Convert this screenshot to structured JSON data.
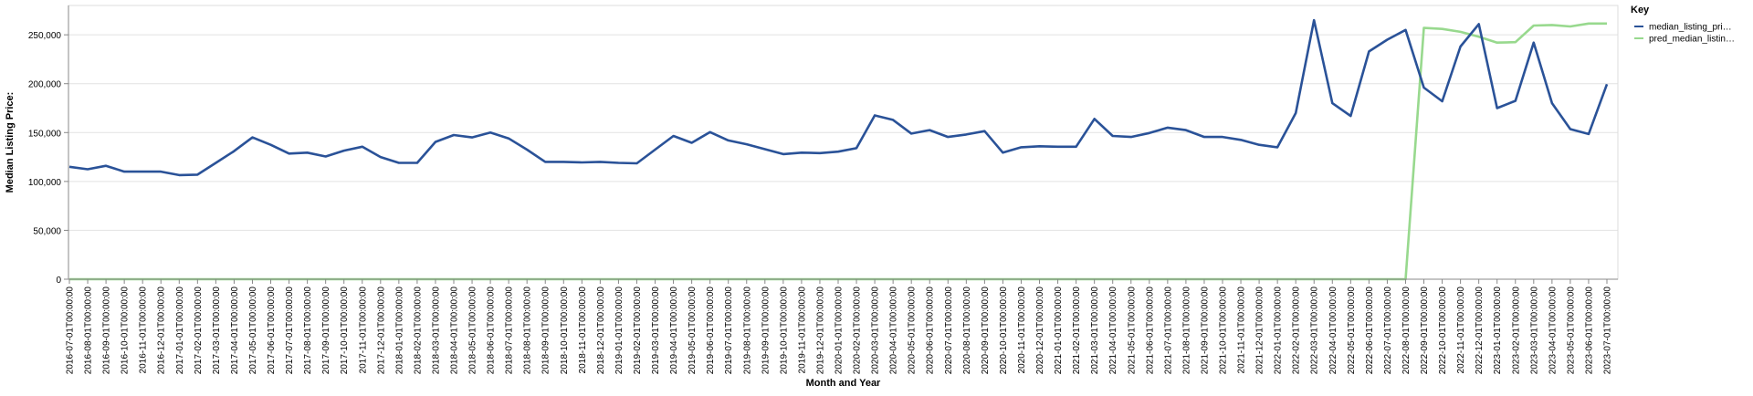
{
  "chart_data": {
    "type": "line",
    "xlabel": "Month and Year",
    "ylabel": "Median Listing Price:",
    "ylim": [
      0,
      280000
    ],
    "yticks": [
      "0",
      "50,000",
      "100,000",
      "150,000",
      "200,000",
      "250,000"
    ],
    "ytick_values": [
      0,
      50000,
      100000,
      150000,
      200000,
      250000
    ],
    "grid": true,
    "legend": {
      "title": "Key",
      "placement": "top-right",
      "entries": [
        "median_listing_pri…",
        "pred_median_listin…"
      ]
    },
    "x": [
      "2016-07-01T00:00:00",
      "2016-08-01T00:00:00",
      "2016-09-01T00:00:00",
      "2016-10-01T00:00:00",
      "2016-11-01T00:00:00",
      "2016-12-01T00:00:00",
      "2017-01-01T00:00:00",
      "2017-02-01T00:00:00",
      "2017-03-01T00:00:00",
      "2017-04-01T00:00:00",
      "2017-05-01T00:00:00",
      "2017-06-01T00:00:00",
      "2017-07-01T00:00:00",
      "2017-08-01T00:00:00",
      "2017-09-01T00:00:00",
      "2017-10-01T00:00:00",
      "2017-11-01T00:00:00",
      "2017-12-01T00:00:00",
      "2018-01-01T00:00:00",
      "2018-02-01T00:00:00",
      "2018-03-01T00:00:00",
      "2018-04-01T00:00:00",
      "2018-05-01T00:00:00",
      "2018-06-01T00:00:00",
      "2018-07-01T00:00:00",
      "2018-08-01T00:00:00",
      "2018-09-01T00:00:00",
      "2018-10-01T00:00:00",
      "2018-11-01T00:00:00",
      "2018-12-01T00:00:00",
      "2019-01-01T00:00:00",
      "2019-02-01T00:00:00",
      "2019-03-01T00:00:00",
      "2019-04-01T00:00:00",
      "2019-05-01T00:00:00",
      "2019-06-01T00:00:00",
      "2019-07-01T00:00:00",
      "2019-08-01T00:00:00",
      "2019-09-01T00:00:00",
      "2019-10-01T00:00:00",
      "2019-11-01T00:00:00",
      "2019-12-01T00:00:00",
      "2020-01-01T00:00:00",
      "2020-02-01T00:00:00",
      "2020-03-01T00:00:00",
      "2020-04-01T00:00:00",
      "2020-05-01T00:00:00",
      "2020-06-01T00:00:00",
      "2020-07-01T00:00:00",
      "2020-08-01T00:00:00",
      "2020-09-01T00:00:00",
      "2020-10-01T00:00:00",
      "2020-11-01T00:00:00",
      "2020-12-01T00:00:00",
      "2021-01-01T00:00:00",
      "2021-02-01T00:00:00",
      "2021-03-01T00:00:00",
      "2021-04-01T00:00:00",
      "2021-05-01T00:00:00",
      "2021-06-01T00:00:00",
      "2021-07-01T00:00:00",
      "2021-08-01T00:00:00",
      "2021-09-01T00:00:00",
      "2021-10-01T00:00:00",
      "2021-11-01T00:00:00",
      "2021-12-01T00:00:00",
      "2022-01-01T00:00:00",
      "2022-02-01T00:00:00",
      "2022-03-01T00:00:00",
      "2022-04-01T00:00:00",
      "2022-05-01T00:00:00",
      "2022-06-01T00:00:00",
      "2022-07-01T00:00:00",
      "2022-08-01T00:00:00",
      "2022-09-01T00:00:00",
      "2022-10-01T00:00:00",
      "2022-11-01T00:00:00",
      "2022-12-01T00:00:00",
      "2023-01-01T00:00:00",
      "2023-02-01T00:00:00",
      "2023-03-01T00:00:00",
      "2023-04-01T00:00:00",
      "2023-05-01T00:00:00",
      "2023-06-01T00:00:00",
      "2023-07-01T00:00:00"
    ],
    "series": [
      {
        "name": "median_listing_pri…",
        "color": "#2a5298",
        "values": [
          115000,
          112500,
          116000,
          110000,
          110000,
          110000,
          106500,
          107000,
          119000,
          131000,
          145000,
          137500,
          128500,
          129500,
          125500,
          131500,
          135500,
          125000,
          119000,
          119000,
          140500,
          147500,
          145000,
          150000,
          144000,
          132500,
          120000,
          120000,
          119500,
          120000,
          119000,
          118500,
          132500,
          146500,
          139500,
          150500,
          142000,
          138000,
          133000,
          128000,
          129500,
          129000,
          130500,
          134000,
          167500,
          163000,
          149000,
          152500,
          145500,
          148000,
          151500,
          129500,
          135000,
          136000,
          135500,
          135500,
          164000,
          146500,
          145500,
          149500,
          155000,
          152500,
          145500,
          145500,
          142500,
          137500,
          135000,
          170000,
          265000,
          180000,
          167000,
          233000,
          245000,
          255000,
          196000,
          182000,
          238000,
          261000,
          175000,
          182500,
          242000,
          180000,
          153500,
          148500,
          199500
        ]
      },
      {
        "name": "pred_median_listin…",
        "color": "#98d98e",
        "values": [
          0,
          0,
          0,
          0,
          0,
          0,
          0,
          0,
          0,
          0,
          0,
          0,
          0,
          0,
          0,
          0,
          0,
          0,
          0,
          0,
          0,
          0,
          0,
          0,
          0,
          0,
          0,
          0,
          0,
          0,
          0,
          0,
          0,
          0,
          0,
          0,
          0,
          0,
          0,
          0,
          0,
          0,
          0,
          0,
          0,
          0,
          0,
          0,
          0,
          0,
          0,
          0,
          0,
          0,
          0,
          0,
          0,
          0,
          0,
          0,
          0,
          0,
          0,
          0,
          0,
          0,
          0,
          0,
          0,
          0,
          0,
          0,
          0,
          0,
          257000,
          256000,
          253000,
          248000,
          242000,
          242500,
          259500,
          260000,
          258500,
          261500,
          261500
        ]
      }
    ]
  }
}
